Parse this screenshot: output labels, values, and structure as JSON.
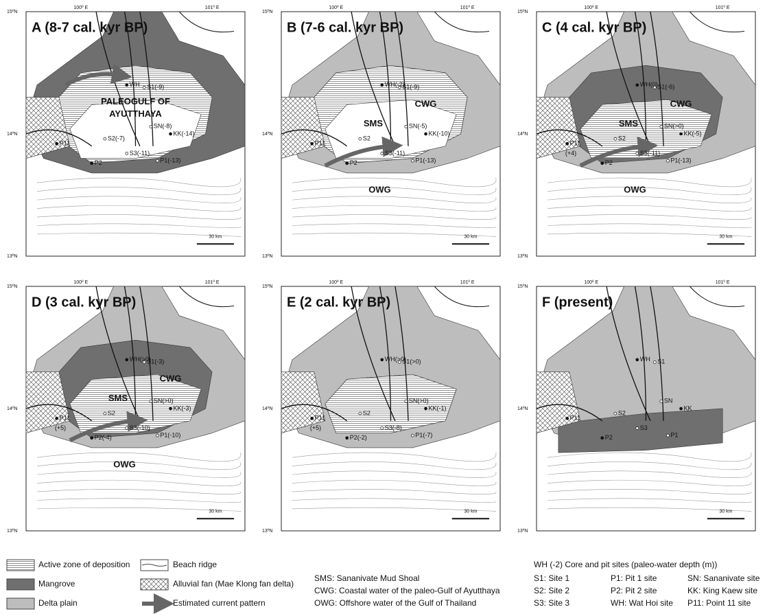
{
  "axes": {
    "lat": [
      "15ºN",
      "14ºN",
      "13ºN"
    ],
    "lon": [
      "100º E",
      "101º E"
    ],
    "scale": "30 km"
  },
  "panels": [
    {
      "title": "A (8-7 cal. kyr BP)",
      "areas": [
        "PALEOGULF OF",
        "AYUTTHAYA"
      ],
      "sites": [
        "WH",
        "S1(-9)",
        "SN(-8)",
        "KK(-14)",
        "P11",
        "S2(-7)",
        "S3(-11)",
        "P2",
        "P1(-13)"
      ]
    },
    {
      "title": "B (7-6 cal. kyr BP)",
      "areas": [
        "SMS",
        "CWG",
        "OWG"
      ],
      "sites": [
        "WH(-2)",
        "S1(-9)",
        "SN(-5)",
        "KK(-10)",
        "P11",
        "S2",
        "S3(-11)",
        "P2",
        "P1(-13)"
      ]
    },
    {
      "title": "C (4 cal. kyr BP)",
      "areas": [
        "CWG",
        "SMS",
        "OWG"
      ],
      "sites": [
        "WH(0)",
        "S1(-6)",
        "SN(>0)",
        "KK(-5)",
        "P11",
        "(+4)",
        "S2",
        "S3(-11)",
        "P2",
        "P1(-13)"
      ]
    },
    {
      "title": "D (3 cal. kyr BP)",
      "areas": [
        "CWG",
        "SMS",
        "OWG"
      ],
      "sites": [
        "WH(>0)",
        "S1(-3)",
        "SN(>0)",
        "KK(-3)",
        "P11",
        "(+5)",
        "S2",
        "S3(-10)",
        "P2(-4)",
        "P1(-10)"
      ]
    },
    {
      "title": "E (2 cal. kyr BP)",
      "areas": [],
      "sites": [
        "WH(>0)",
        "S1(>0)",
        "SN(>0)",
        "KK(-1)",
        "P11",
        "(+5)",
        "S2",
        "S3(-8)",
        "P2(-2)",
        "P1(-7)"
      ]
    },
    {
      "title": "F (present)",
      "areas": [],
      "sites": [
        "WH",
        "S1",
        "SN",
        "KK",
        "P11",
        "S2",
        "S3",
        "P2",
        "P1"
      ]
    }
  ],
  "legend": {
    "patterns": [
      "Active zone of deposition",
      "Mangrove",
      "Delta plain"
    ],
    "symbols": [
      "Beach ridge",
      "Alluvial fan (Mae Klong fan delta)",
      "Estimated current pattern"
    ],
    "abbreviations": [
      "SMS: Sananivate Mud Shoal",
      "CWG: Coastal water of the paleo-Gulf of Ayutthaya",
      "OWG: Offshore water of the Gulf of Thailand"
    ],
    "sites_title": "WH (-2) Core and pit sites (paleo-water depth (m))",
    "sites": [
      "S1: Site 1",
      "P1: Pit 1 site",
      "SN: Sananivate site",
      "S2: Site 2",
      "P2: Pit 2 site",
      "KK: King Kaew site",
      "S3: Site 3",
      "WH: Wat Hoi site",
      "P11: Point 11 site"
    ]
  }
}
